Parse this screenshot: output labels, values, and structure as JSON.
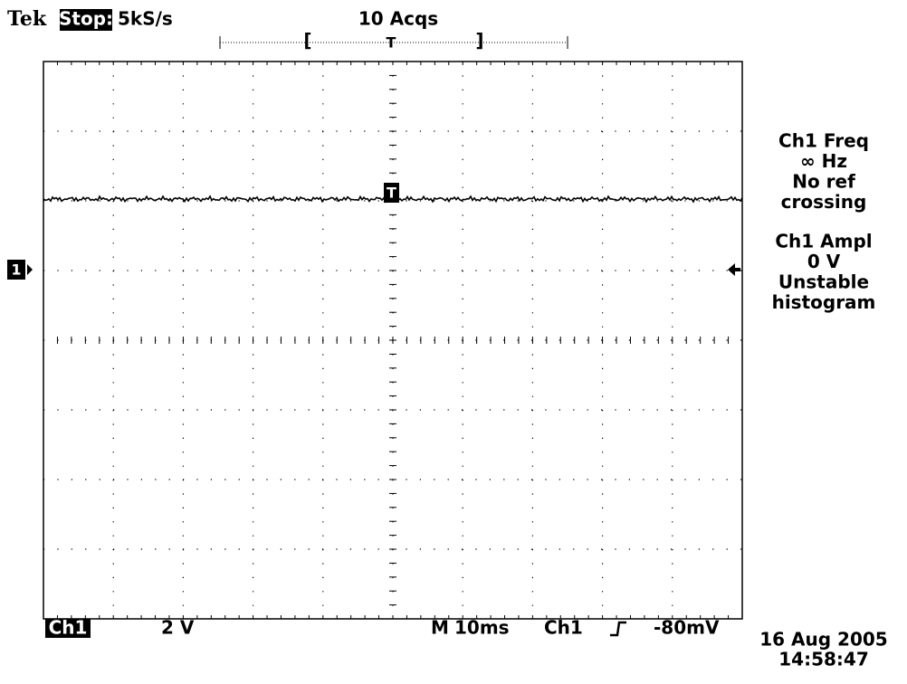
{
  "header": {
    "brand": "Tek",
    "state": "Stop:",
    "sample_rate": "5kS/s",
    "acquisitions": "10 Acqs",
    "trigger_window": {
      "left": "[",
      "marker": "T",
      "right": "]"
    }
  },
  "channel_marker": "1",
  "trace_trigger_marker": "T",
  "measurements": [
    {
      "lines": [
        "Ch1 Freq",
        "∞ Hz",
        "No ref",
        "crossing"
      ]
    },
    {
      "lines": [
        "Ch1 Ampl",
        "0 V",
        "Unstable",
        "histogram"
      ]
    }
  ],
  "status_bar": {
    "channel": "Ch1",
    "scale": "2 V",
    "timebase_label": "M",
    "timebase": "10ms",
    "trigger_source": "Ch1",
    "trigger_level": "-80mV"
  },
  "timestamp": {
    "date": "16 Aug 2005",
    "time": "14:58:47"
  }
}
